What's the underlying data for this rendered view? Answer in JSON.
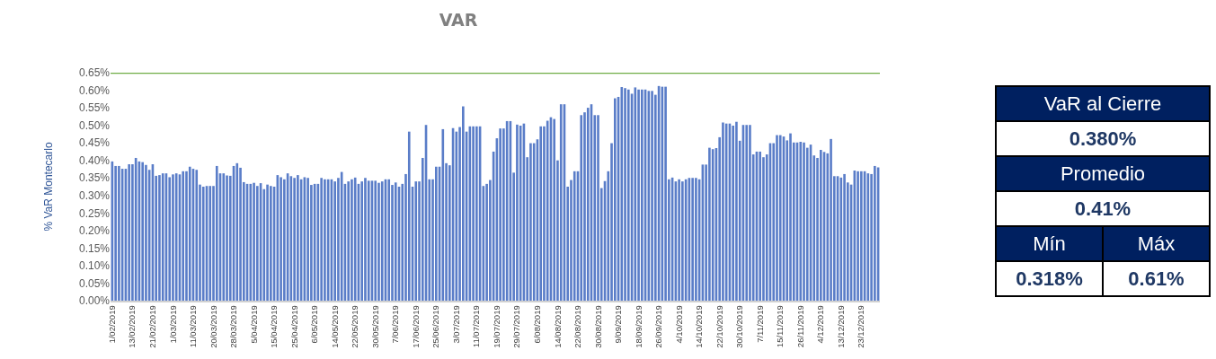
{
  "chart_data": [
    {
      "type": "bar",
      "title": "VAR",
      "ylabel": "% VaR Montecarlo",
      "color": "#5a7dc8",
      "categories": [
        "1/02/2019",
        null,
        null,
        null,
        null,
        null,
        "13/02/2019",
        null,
        null,
        null,
        null,
        null,
        "21/02/2019",
        null,
        null,
        null,
        null,
        null,
        "1/03/2019",
        null,
        null,
        null,
        null,
        null,
        "11/03/2019",
        null,
        null,
        null,
        null,
        null,
        "20/03/2019",
        null,
        null,
        null,
        null,
        null,
        "28/03/2019",
        null,
        null,
        null,
        null,
        null,
        "5/04/2019",
        null,
        null,
        null,
        null,
        null,
        "15/04/2019",
        null,
        null,
        null,
        null,
        null,
        "25/04/2019",
        null,
        null,
        null,
        null,
        null,
        "6/05/2019",
        null,
        null,
        null,
        null,
        null,
        "14/05/2019",
        null,
        null,
        null,
        null,
        null,
        "22/05/2019",
        null,
        null,
        null,
        null,
        null,
        "30/05/2019",
        null,
        null,
        null,
        null,
        null,
        "7/06/2019",
        null,
        null,
        null,
        null,
        null,
        "17/06/2019",
        null,
        null,
        null,
        null,
        null,
        "25/06/2019",
        null,
        null,
        null,
        null,
        null,
        "3/07/2019",
        null,
        null,
        null,
        null,
        null,
        "11/07/2019",
        null,
        null,
        null,
        null,
        null,
        "19/07/2019",
        null,
        null,
        null,
        null,
        null,
        "29/07/2019",
        null,
        null,
        null,
        null,
        null,
        "6/08/2019",
        null,
        null,
        null,
        null,
        null,
        "14/08/2019",
        null,
        null,
        null,
        null,
        null,
        "22/08/2019",
        null,
        null,
        null,
        null,
        null,
        "30/08/2019",
        null,
        null,
        null,
        null,
        null,
        "9/09/2019",
        null,
        null,
        null,
        null,
        null,
        "18/09/2019",
        null,
        null,
        null,
        null,
        null,
        "26/09/2019",
        null,
        null,
        null,
        null,
        null,
        "4/10/2019",
        null,
        null,
        null,
        null,
        null,
        "14/10/2019",
        null,
        null,
        null,
        null,
        null,
        "22/10/2019",
        null,
        null,
        null,
        null,
        null,
        "30/10/2019",
        null,
        null,
        null,
        null,
        null,
        "7/11/2019",
        null,
        null,
        null,
        null,
        null,
        "15/11/2019",
        null,
        null,
        null,
        null,
        null,
        "26/11/2019",
        null,
        null,
        null,
        null,
        null,
        "4/12/2019",
        null,
        null,
        null,
        null,
        null,
        "13/12/2019",
        null,
        null,
        null,
        null,
        null,
        "23/12/2019",
        null,
        null,
        null,
        null,
        null
      ],
      "values": [
        0.397,
        0.384,
        0.384,
        0.376,
        0.376,
        0.389,
        0.389,
        0.407,
        0.397,
        0.395,
        0.387,
        0.373,
        0.389,
        0.356,
        0.358,
        0.363,
        0.363,
        0.352,
        0.36,
        0.363,
        0.36,
        0.369,
        0.369,
        0.382,
        0.376,
        0.373,
        0.331,
        0.325,
        0.327,
        0.327,
        0.327,
        0.384,
        0.363,
        0.363,
        0.357,
        0.356,
        0.384,
        0.392,
        0.379,
        0.338,
        0.333,
        0.333,
        0.336,
        0.327,
        0.335,
        0.318,
        0.331,
        0.327,
        0.325,
        0.358,
        0.352,
        0.346,
        0.363,
        0.355,
        0.35,
        0.358,
        0.346,
        0.352,
        0.35,
        0.33,
        0.333,
        0.333,
        0.35,
        0.346,
        0.346,
        0.346,
        0.34,
        0.35,
        0.367,
        0.333,
        0.34,
        0.346,
        0.351,
        0.333,
        0.34,
        0.35,
        0.342,
        0.342,
        0.342,
        0.336,
        0.34,
        0.346,
        0.346,
        0.33,
        0.337,
        0.325,
        0.333,
        0.361,
        0.482,
        0.325,
        0.34,
        0.34,
        0.407,
        0.501,
        0.346,
        0.346,
        0.382,
        0.382,
        0.489,
        0.392,
        0.386,
        0.492,
        0.482,
        0.495,
        0.554,
        0.482,
        0.497,
        0.497,
        0.497,
        0.497,
        0.327,
        0.333,
        0.344,
        0.425,
        0.463,
        0.491,
        0.491,
        0.512,
        0.512,
        0.365,
        0.502,
        0.499,
        0.505,
        0.409,
        0.449,
        0.449,
        0.46,
        0.497,
        0.497,
        0.513,
        0.523,
        0.518,
        0.4,
        0.56,
        0.56,
        0.325,
        0.344,
        0.369,
        0.369,
        0.529,
        0.537,
        0.55,
        0.56,
        0.529,
        0.529,
        0.321,
        0.341,
        0.369,
        0.449,
        0.577,
        0.581,
        0.609,
        0.606,
        0.602,
        0.59,
        0.608,
        0.602,
        0.602,
        0.602,
        0.598,
        0.598,
        0.587,
        0.612,
        0.61,
        0.61,
        0.346,
        0.351,
        0.34,
        0.346,
        0.34,
        0.346,
        0.35,
        0.35,
        0.35,
        0.346,
        0.388,
        0.388,
        0.436,
        0.432,
        0.435,
        0.466,
        0.508,
        0.505,
        0.505,
        0.499,
        0.51,
        0.456,
        0.501,
        0.501,
        0.501,
        0.417,
        0.425,
        0.425,
        0.409,
        0.417,
        0.449,
        0.449,
        0.472,
        0.472,
        0.468,
        0.457,
        0.477,
        0.451,
        0.451,
        0.453,
        0.451,
        0.436,
        0.445,
        0.414,
        0.407,
        0.43,
        0.424,
        0.42,
        0.461,
        0.355,
        0.355,
        0.351,
        0.361,
        0.337,
        0.331,
        0.371,
        0.369,
        0.369,
        0.369,
        0.363,
        0.361,
        0.384,
        0.38
      ],
      "ylim": [
        0,
        0.65
      ],
      "yticks": [
        {
          "value": 0,
          "label": "0.00%"
        },
        {
          "value": 0.05,
          "label": "0.05%"
        },
        {
          "value": 0.1,
          "label": "0.10%"
        },
        {
          "value": 0.15,
          "label": "0.15%"
        },
        {
          "value": 0.2,
          "label": "0.20%"
        },
        {
          "value": 0.25,
          "label": "0.25%"
        },
        {
          "value": 0.3,
          "label": "0.30%"
        },
        {
          "value": 0.35,
          "label": "0.35%"
        },
        {
          "value": 0.4,
          "label": "0.40%"
        },
        {
          "value": 0.45,
          "label": "0.45%"
        },
        {
          "value": 0.5,
          "label": "0.50%"
        },
        {
          "value": 0.55,
          "label": "0.55%"
        },
        {
          "value": 0.6,
          "label": "0.60%"
        },
        {
          "value": 0.65,
          "label": "0.65%"
        }
      ],
      "ref_lines": [
        {
          "axis": "y",
          "value": 0.65,
          "color": "#70ad47"
        }
      ]
    },
    {
      "type": "other",
      "annotations": [
        "VaR al Cierre",
        "0.380%",
        "Promedio",
        "0.41%",
        "Mín",
        "Máx",
        "0.318%",
        "0.61%"
      ]
    }
  ]
}
